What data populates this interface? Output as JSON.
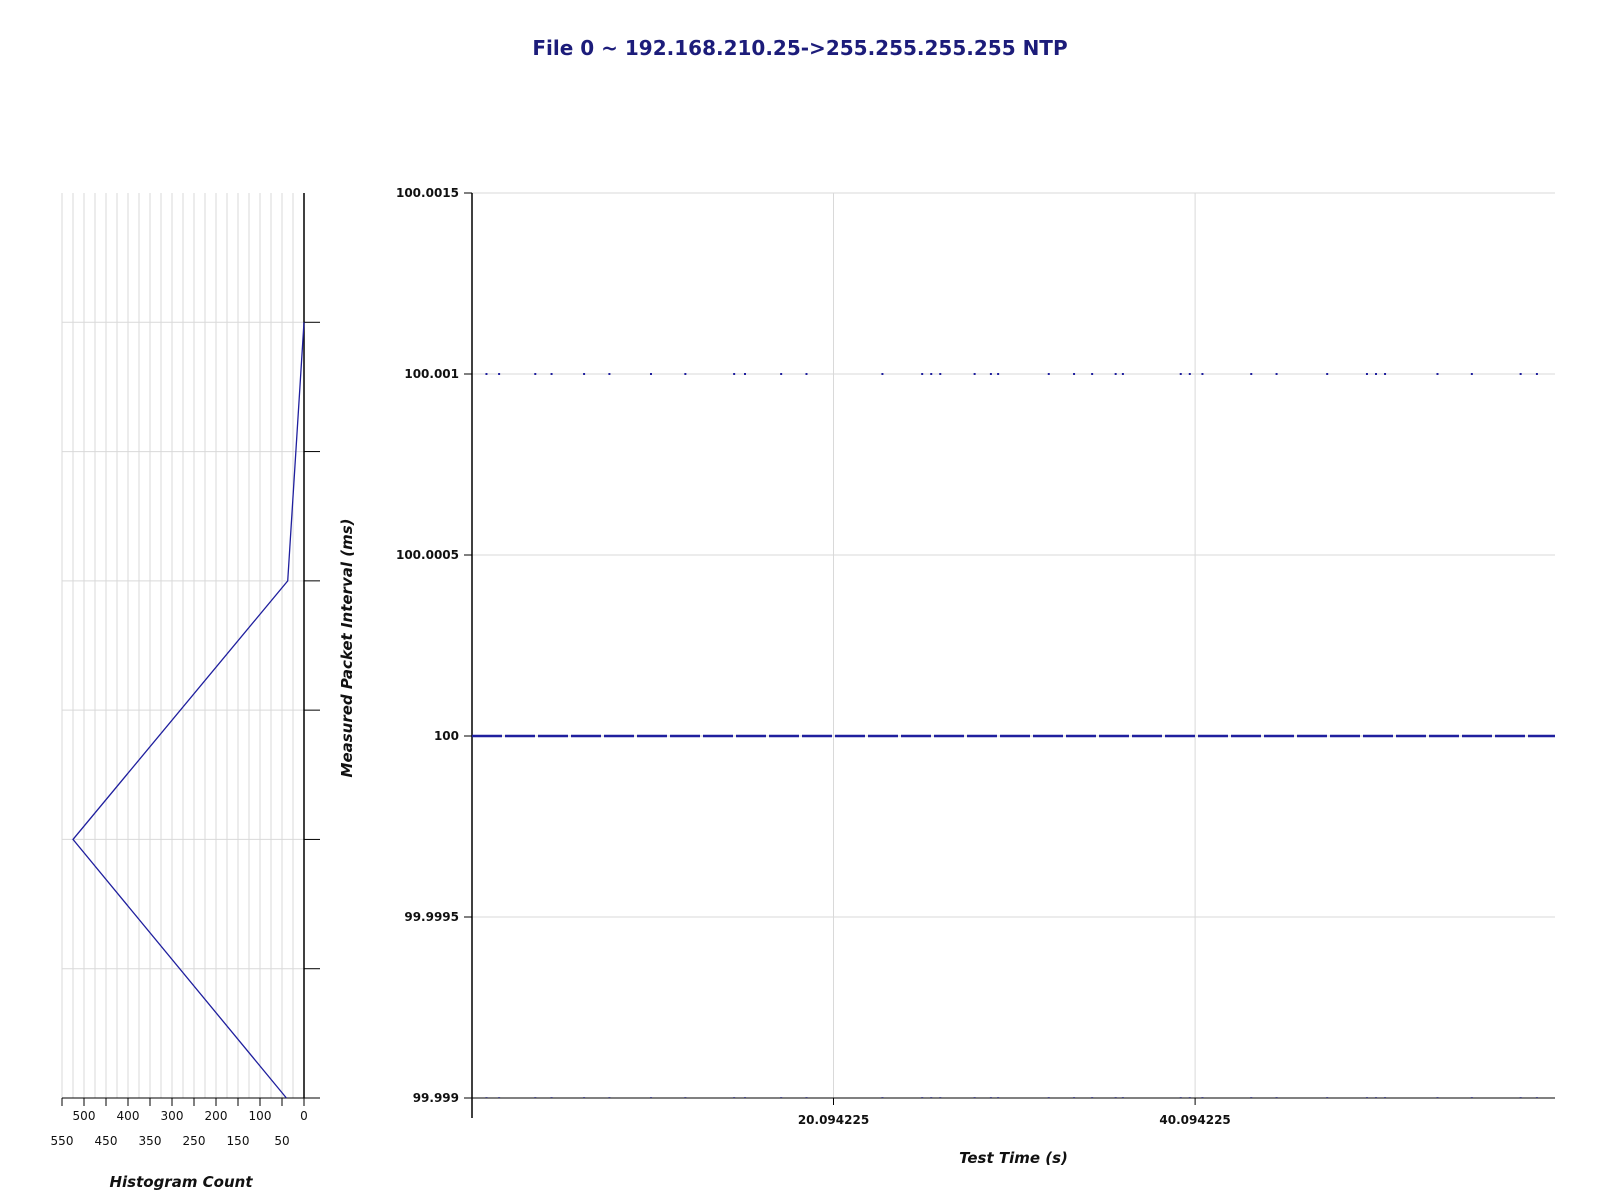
{
  "title": "File 0 ~ 192.168.210.25->255.255.255.255 NTP",
  "colors": {
    "series": "#1f1f9e",
    "grid": "#d9d9d9",
    "axis": "#000000",
    "title": "#1c1c7a"
  },
  "chart_data": [
    {
      "type": "scatter",
      "title": "File 0 ~ 192.168.210.25->255.255.255.255 NTP",
      "xlabel": "Test Time (s)",
      "ylabel": "Measured Packet Interval (ms)",
      "xlim": [
        0.1,
        60.0
      ],
      "ylim": [
        99.999,
        100.0015
      ],
      "x_ticks": [
        {
          "value": 20.094225,
          "label": "20.094225"
        },
        {
          "value": 40.094225,
          "label": "40.094225"
        }
      ],
      "y_ticks": [
        {
          "value": 99.999,
          "label": "99.999"
        },
        {
          "value": 99.9995,
          "label": "99.9995"
        },
        {
          "value": 100.0,
          "label": "100"
        },
        {
          "value": 100.0005,
          "label": "100.0005"
        },
        {
          "value": 100.001,
          "label": "100.001"
        },
        {
          "value": 100.0015,
          "label": "100.0015"
        }
      ],
      "grid": true,
      "series": [
        {
          "y": 100.001,
          "x": [
            0.9,
            1.6,
            3.6,
            4.5,
            6.3,
            7.7,
            10.0,
            11.9,
            14.6,
            15.2,
            17.2,
            18.6,
            22.8,
            25.0,
            25.5,
            26.0,
            27.9,
            28.8,
            29.2,
            32.0,
            33.4,
            34.4,
            35.7,
            36.1,
            39.3,
            39.8,
            40.5,
            43.2,
            44.6,
            47.4,
            49.6,
            50.1,
            50.6,
            53.5,
            55.4,
            58.1,
            59.0
          ]
        },
        {
          "y": 100.0,
          "x_start": 0.1,
          "x_end": 60.0
        },
        {
          "y": 99.999,
          "x": [
            0.9,
            1.6,
            3.6,
            4.5,
            6.3,
            7.7,
            10.0,
            11.9,
            14.6,
            15.2,
            17.2,
            18.6,
            22.8,
            25.0,
            25.5,
            26.0,
            27.9,
            28.8,
            29.2,
            32.0,
            33.4,
            34.4,
            35.7,
            36.1,
            39.3,
            39.8,
            40.5,
            43.2,
            44.6,
            47.4,
            49.6,
            50.1,
            50.6,
            53.5,
            55.4,
            58.1,
            59.0
          ]
        }
      ]
    },
    {
      "type": "line",
      "orientation": "horizontal-histogram",
      "xlabel": "Histogram Count",
      "xlim": [
        0,
        550
      ],
      "count_ticks_upper": [
        "500",
        "400",
        "300",
        "200",
        "100",
        "0"
      ],
      "count_ticks_lower": [
        "550",
        "450",
        "350",
        "250",
        "150",
        "50"
      ],
      "count_ticks_upper_values": [
        500,
        400,
        300,
        200,
        100,
        0
      ],
      "count_ticks_lower_values": [
        550,
        450,
        350,
        250,
        150,
        50
      ],
      "bins": [
        {
          "bin": 0,
          "count": 40
        },
        {
          "bin": 2,
          "count": 525
        },
        {
          "bin": 4,
          "count": 37
        },
        {
          "bin": 6,
          "count": 0
        }
      ],
      "bin_count": 7
    }
  ]
}
